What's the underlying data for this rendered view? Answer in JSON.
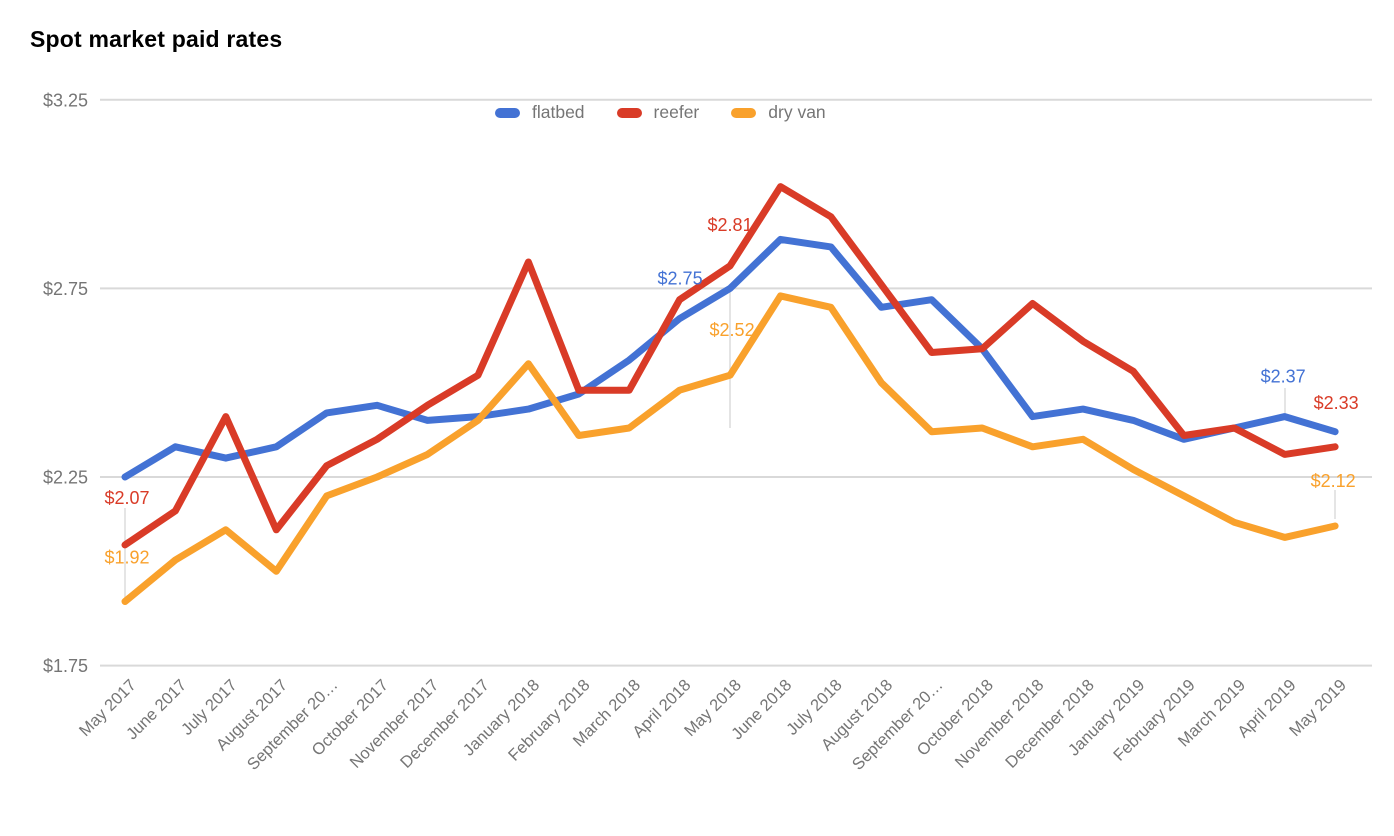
{
  "title": "Spot market paid rates",
  "chart_data": {
    "type": "line",
    "title": "Spot market paid rates",
    "legend": {
      "position": "top",
      "entries": [
        "flatbed",
        "reefer",
        "dry van"
      ]
    },
    "grid": true,
    "y_axis": {
      "tick_labels": [
        "$3.25",
        "$2.75",
        "$2.25",
        "$1.75"
      ],
      "tick_values": [
        3.25,
        2.75,
        2.25,
        1.75
      ],
      "min": 1.75,
      "max": 3.25,
      "prefix": "$"
    },
    "categories": [
      "May 2017",
      "June 2017",
      "July 2017",
      "August 2017",
      "September 20…",
      "October 2017",
      "November 2017",
      "December 2017",
      "January 2018",
      "February 2018",
      "March 2018",
      "April 2018",
      "May 2018",
      "June 2018",
      "July 2018",
      "August 2018",
      "September 20…",
      "October 2018",
      "November 2018",
      "December 2018",
      "January 2019",
      "February 2019",
      "March 2019",
      "April 2019",
      "May 2019"
    ],
    "series": [
      {
        "name": "flatbed",
        "color": "#4372D4",
        "values": [
          2.25,
          2.33,
          2.3,
          2.33,
          2.42,
          2.44,
          2.4,
          2.41,
          2.43,
          2.47,
          2.56,
          2.67,
          2.75,
          2.88,
          2.86,
          2.7,
          2.72,
          2.59,
          2.41,
          2.43,
          2.4,
          2.35,
          2.38,
          2.41,
          2.37
        ]
      },
      {
        "name": "reefer",
        "color": "#D93B27",
        "values": [
          2.07,
          2.16,
          2.41,
          2.11,
          2.28,
          2.35,
          2.44,
          2.52,
          2.82,
          2.48,
          2.48,
          2.72,
          2.81,
          3.02,
          2.94,
          2.76,
          2.58,
          2.59,
          2.71,
          2.61,
          2.53,
          2.36,
          2.38,
          2.31,
          2.33
        ]
      },
      {
        "name": "dry van",
        "color": "#F9A12C",
        "values": [
          1.92,
          2.03,
          2.11,
          2.0,
          2.2,
          2.25,
          2.31,
          2.4,
          2.55,
          2.36,
          2.38,
          2.48,
          2.52,
          2.73,
          2.7,
          2.5,
          2.37,
          2.38,
          2.33,
          2.35,
          2.27,
          2.2,
          2.13,
          2.09,
          2.12
        ]
      }
    ],
    "annotations": [
      {
        "series": "reefer",
        "category": "May 2017",
        "text": "$2.07"
      },
      {
        "series": "dry van",
        "category": "May 2017",
        "text": "$1.92"
      },
      {
        "series": "flatbed",
        "category": "May 2018",
        "text": "$2.75"
      },
      {
        "series": "reefer",
        "category": "May 2018",
        "text": "$2.81"
      },
      {
        "series": "dry van",
        "category": "May 2018",
        "text": "$2.52"
      },
      {
        "series": "flatbed",
        "category": "May 2019",
        "text": "$2.37"
      },
      {
        "series": "reefer",
        "category": "May 2019",
        "text": "$2.33"
      },
      {
        "series": "dry van",
        "category": "May 2019",
        "text": "$2.12"
      }
    ],
    "colors": {
      "gridline": "#D9D9D9",
      "stem": "#DCDCDC",
      "axis_text": "#757575",
      "title_text": "#000000",
      "background": "#FFFFFF"
    }
  }
}
